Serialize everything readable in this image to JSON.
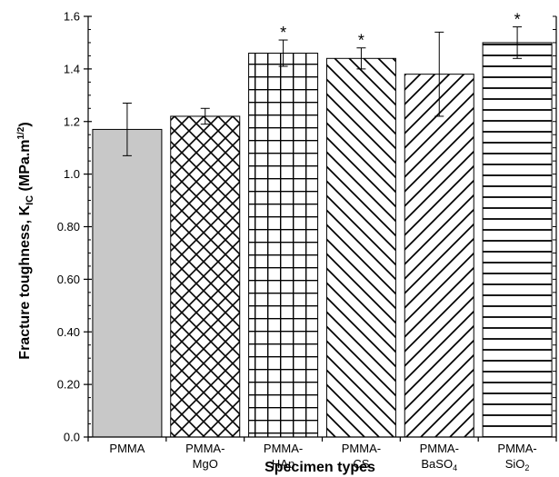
{
  "chart_data": {
    "type": "bar",
    "xlabel": "Specimen types",
    "ylabel": {
      "main": "Fracture toughness, K",
      "sub": "IC",
      "unit_pre": " (MPa.m",
      "unit_sup": "1/2",
      "unit_post": ")"
    },
    "ylim": [
      0,
      1.6
    ],
    "yticks": [
      {
        "value": 0.0,
        "label": "0.0"
      },
      {
        "value": 0.2,
        "label": "0.20"
      },
      {
        "value": 0.4,
        "label": "0.40"
      },
      {
        "value": 0.6,
        "label": "0.60"
      },
      {
        "value": 0.8,
        "label": "0.80"
      },
      {
        "value": 1.0,
        "label": "1.0"
      },
      {
        "value": 1.2,
        "label": "1.2"
      },
      {
        "value": 1.4,
        "label": "1.4"
      },
      {
        "value": 1.6,
        "label": "1.6"
      }
    ],
    "grid": false,
    "legend": "none",
    "categories": [
      {
        "line1": "PMMA",
        "line2": "",
        "sub": "",
        "line2b": ""
      },
      {
        "line1": "PMMA-",
        "line2": "MgO",
        "sub": "",
        "line2b": ""
      },
      {
        "line1": "PMMA-",
        "line2": "HAp",
        "sub": "",
        "line2b": ""
      },
      {
        "line1": "PMMA-",
        "line2": "CS",
        "sub": "",
        "line2b": ""
      },
      {
        "line1": "PMMA-",
        "line2": "BaSO",
        "sub": "4",
        "line2b": ""
      },
      {
        "line1": "PMMA-",
        "line2": "SiO",
        "sub": "2",
        "line2b": ""
      }
    ],
    "values": [
      1.17,
      1.22,
      1.46,
      1.44,
      1.38,
      1.5
    ],
    "errors": [
      0.1,
      0.03,
      0.05,
      0.04,
      0.16,
      0.06
    ],
    "significant": [
      false,
      false,
      true,
      true,
      false,
      true
    ],
    "significance_marker": "*",
    "patterns": [
      "solid-gray",
      "crosshatch-diagonal",
      "grid",
      "diagonal-back",
      "diagonal-forward",
      "horizontal"
    ],
    "colors": {
      "solid_fill": "#c8c8c8",
      "stroke": "#000000"
    }
  }
}
